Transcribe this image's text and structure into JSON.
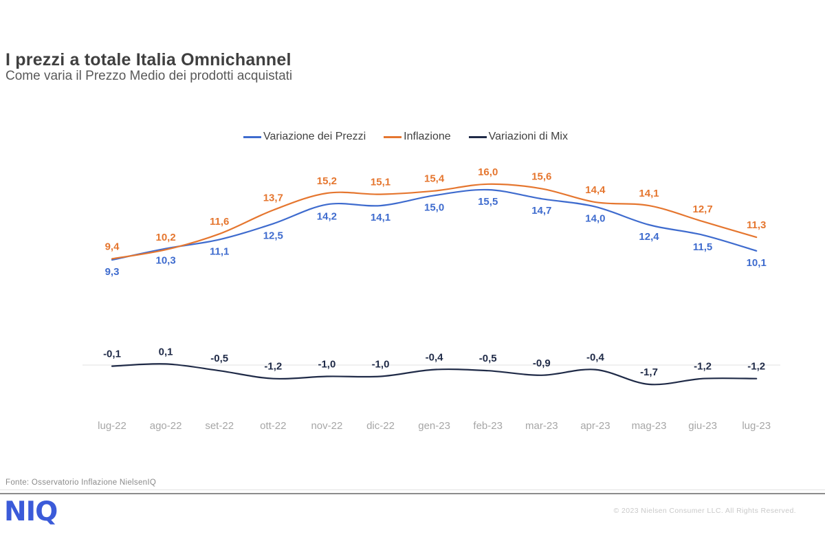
{
  "header": {
    "title": "I prezzi a totale Italia Omnichannel",
    "subtitle": "Come varia il Prezzo Medio dei prodotti acquistati"
  },
  "chart_data": {
    "type": "line",
    "title": "",
    "xlabel": "",
    "ylabel": "",
    "categories": [
      "lug-22",
      "ago-22",
      "set-22",
      "ott-22",
      "nov-22",
      "dic-22",
      "gen-23",
      "feb-23",
      "mar-23",
      "apr-23",
      "mag-23",
      "giu-23",
      "lug-23"
    ],
    "series": [
      {
        "name": "Variazione dei Prezzi",
        "color": "#3e6bce",
        "values": [
          9.3,
          10.3,
          11.1,
          12.5,
          14.2,
          14.1,
          15.0,
          15.5,
          14.7,
          14.0,
          12.4,
          11.5,
          10.1
        ],
        "labels": [
          "9,3",
          "10,3",
          "11,1",
          "12,5",
          "14,2",
          "14,1",
          "15,0",
          "15,5",
          "14,7",
          "14,0",
          "12,4",
          "11,5",
          "10,1"
        ],
        "label_side": "below"
      },
      {
        "name": "Inflazione",
        "color": "#e5762f",
        "values": [
          9.4,
          10.2,
          11.6,
          13.7,
          15.2,
          15.1,
          15.4,
          16.0,
          15.6,
          14.4,
          14.1,
          12.7,
          11.3
        ],
        "labels": [
          "9,4",
          "10,2",
          "11,6",
          "13,7",
          "15,2",
          "15,1",
          "15,4",
          "16,0",
          "15,6",
          "14,4",
          "14,1",
          "12,7",
          "11,3"
        ],
        "label_side": "above"
      },
      {
        "name": "Variazioni di Mix",
        "color": "#1f2a47",
        "values": [
          -0.1,
          0.1,
          -0.5,
          -1.2,
          -1.0,
          -1.0,
          -0.4,
          -0.5,
          -0.9,
          -0.4,
          -1.7,
          -1.2,
          -1.2
        ],
        "labels": [
          "-0,1",
          "0,1",
          "-0,5",
          "-1,2",
          "-1,0",
          "-1,0",
          "-0,4",
          "-0,5",
          "-0,9",
          "-0,4",
          "-1,7",
          "-1,2",
          "-1,2"
        ],
        "label_side": "above"
      }
    ],
    "ylim": [
      -2.5,
      17.5
    ],
    "grid": "zero-line-only",
    "legend_position": "top",
    "axis_label_color": "#a6a6a6",
    "zero_line_color": "#e0e0e0"
  },
  "footer": {
    "source": "Fonte: Osservatorio Inflazione NielsenIQ",
    "logo": "NIQ",
    "logo_color": "#3b5bd9",
    "copyright": "© 2023 Nielsen Consumer LLC. All Rights Reserved."
  }
}
